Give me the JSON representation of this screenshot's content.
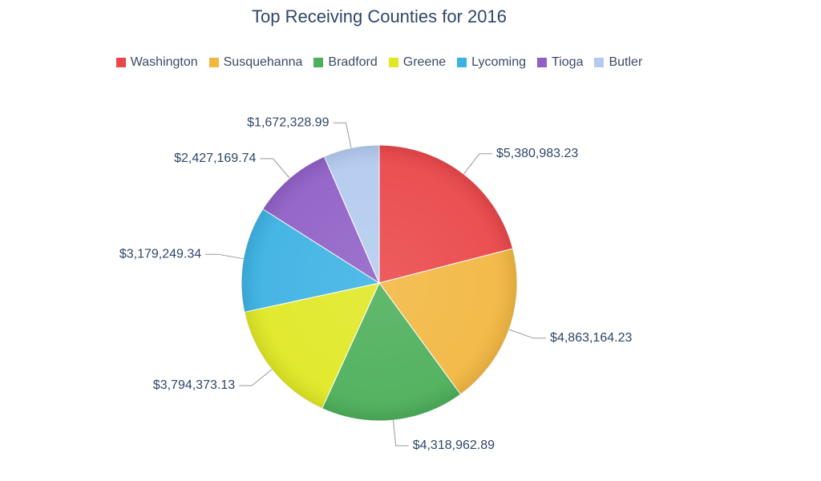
{
  "chart_data": {
    "type": "pie",
    "title": "Top Receiving Counties for 2016",
    "categories": [
      "Washington",
      "Susquehanna",
      "Bradford",
      "Greene",
      "Lycoming",
      "Tioga",
      "Butler"
    ],
    "values": [
      5380983.23,
      4863164.23,
      4318962.89,
      3794373.13,
      3179249.34,
      2427169.74,
      1672328.99
    ],
    "value_labels": [
      "$5,380,983.23",
      "$4,863,164.23",
      "$4,318,962.89",
      "$3,794,373.13",
      "$3,179,249.34",
      "$2,427,169.74",
      "$1,672,328.99"
    ],
    "colors": [
      "#ea474a",
      "#f2b741",
      "#4caf5a",
      "#e0e824",
      "#3cb2e3",
      "#9060c6",
      "#b3cbf0"
    ],
    "legend": "top"
  }
}
